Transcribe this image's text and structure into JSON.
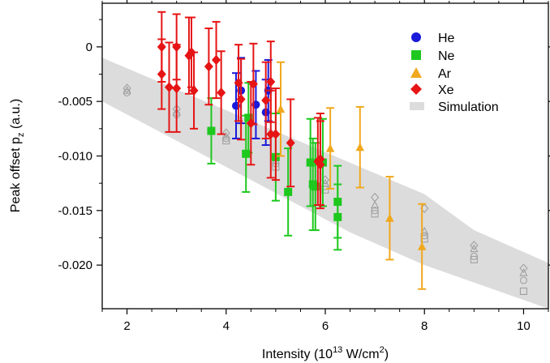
{
  "chart_data": {
    "type": "scatter",
    "xlabel": {
      "main": "Intensity (10",
      "sup": "13",
      "mid": " W/cm",
      "sup2": "2",
      "end": ")"
    },
    "ylabel": {
      "main": "Peak offset p",
      "sub": "z",
      "end": " (a.u.)"
    },
    "xlim": [
      1.5,
      10.5
    ],
    "ylim": [
      -0.024,
      0.004
    ],
    "x_ticks": [
      2,
      4,
      6,
      8,
      10
    ],
    "x_tick_labels": [
      "2",
      "4",
      "6",
      "8",
      "10"
    ],
    "y_ticks": [
      0,
      -0.005,
      -0.01,
      -0.015,
      -0.02
    ],
    "y_tick_labels": [
      "0",
      "-0.005",
      "-0.010",
      "-0.015",
      "-0.020"
    ],
    "legend_position": "top-right",
    "series": [
      {
        "name": "He",
        "marker": "circle",
        "color": "#1a1adb",
        "points": [
          {
            "x": 4.2,
            "y": -0.0054,
            "err": 0.003
          },
          {
            "x": 4.3,
            "y": -0.004,
            "err": 0.003
          },
          {
            "x": 4.6,
            "y": -0.0053,
            "err": 0.0031
          },
          {
            "x": 4.8,
            "y": -0.006,
            "err": 0.003
          },
          {
            "x": 4.85,
            "y": -0.004,
            "err": 0.0028
          }
        ]
      },
      {
        "name": "Ne",
        "marker": "square",
        "color": "#1ec81e",
        "points": [
          {
            "x": 3.7,
            "y": -0.0077,
            "err": 0.003
          },
          {
            "x": 4.4,
            "y": -0.0098,
            "err": 0.0035
          },
          {
            "x": 4.45,
            "y": -0.0065,
            "err": 0.0032
          },
          {
            "x": 5.0,
            "y": -0.0101,
            "err": 0.004
          },
          {
            "x": 5.25,
            "y": -0.0133,
            "err": 0.004
          },
          {
            "x": 5.7,
            "y": -0.0106,
            "err": 0.004
          },
          {
            "x": 5.75,
            "y": -0.0126,
            "err": 0.0042
          },
          {
            "x": 5.8,
            "y": -0.0128,
            "err": 0.004
          },
          {
            "x": 5.95,
            "y": -0.0106,
            "err": 0.004
          },
          {
            "x": 6.25,
            "y": -0.0142,
            "err": 0.0033
          },
          {
            "x": 6.25,
            "y": -0.0156,
            "err": 0.003
          }
        ]
      },
      {
        "name": "Ar",
        "marker": "triangle",
        "color": "#f0a81e",
        "points": [
          {
            "x": 5.1,
            "y": -0.0057,
            "err": 0.0043
          },
          {
            "x": 6.1,
            "y": -0.0093,
            "err": 0.0037
          },
          {
            "x": 6.7,
            "y": -0.0092,
            "err": 0.0037
          },
          {
            "x": 7.3,
            "y": -0.0157,
            "err": 0.0038
          },
          {
            "x": 7.95,
            "y": -0.0183,
            "err": 0.0039
          }
        ]
      },
      {
        "name": "Xe",
        "marker": "diamond",
        "color": "#e61414",
        "points": [
          {
            "x": 2.7,
            "y": 0.0,
            "err": 0.0032
          },
          {
            "x": 2.7,
            "y": -0.0025,
            "err": 0.0032
          },
          {
            "x": 2.85,
            "y": -0.0037,
            "err": 0.0041
          },
          {
            "x": 3.0,
            "y": 0.0,
            "err": 0.003
          },
          {
            "x": 3.0,
            "y": -0.0038,
            "err": 0.004
          },
          {
            "x": 3.25,
            "y": -0.0008,
            "err": 0.0035
          },
          {
            "x": 3.3,
            "y": -0.0005,
            "err": 0.0032
          },
          {
            "x": 3.35,
            "y": -0.004,
            "err": 0.0035
          },
          {
            "x": 3.65,
            "y": -0.0018,
            "err": 0.0035
          },
          {
            "x": 3.8,
            "y": -0.0012,
            "err": 0.0035
          },
          {
            "x": 3.9,
            "y": -0.0042,
            "err": 0.0038
          },
          {
            "x": 4.25,
            "y": -0.0033,
            "err": 0.0035
          },
          {
            "x": 4.3,
            "y": -0.0048,
            "err": 0.0037
          },
          {
            "x": 4.5,
            "y": -0.007,
            "err": 0.0038
          },
          {
            "x": 4.55,
            "y": -0.0034,
            "err": 0.0037
          },
          {
            "x": 4.8,
            "y": -0.0049,
            "err": 0.0035
          },
          {
            "x": 4.9,
            "y": -0.0032,
            "err": 0.0037
          },
          {
            "x": 4.9,
            "y": -0.008,
            "err": 0.004
          },
          {
            "x": 5.0,
            "y": -0.008,
            "err": 0.0042
          },
          {
            "x": 5.3,
            "y": -0.0088,
            "err": 0.004
          },
          {
            "x": 5.85,
            "y": -0.0105,
            "err": 0.004
          },
          {
            "x": 5.9,
            "y": -0.0103,
            "err": 0.0042
          },
          {
            "x": 5.9,
            "y": -0.0108,
            "err": 0.004
          }
        ]
      }
    ],
    "simulation": {
      "name": "Simulation",
      "color": "#dcdcdc",
      "band_upper": [
        [
          1.5,
          -0.001
        ],
        [
          8.0,
          -0.0135
        ],
        [
          9.0,
          -0.0168
        ],
        [
          10.5,
          -0.0198
        ]
      ],
      "band_lower": [
        [
          1.5,
          -0.005
        ],
        [
          6.5,
          -0.017
        ],
        [
          8.0,
          -0.02
        ],
        [
          10.5,
          -0.024
        ]
      ],
      "points_color": "#a0a0a0",
      "points": [
        {
          "x": 2.0,
          "y": -0.0038,
          "marker": "diamond"
        },
        {
          "x": 2.0,
          "y": -0.004,
          "marker": "triangle"
        },
        {
          "x": 2.0,
          "y": -0.0042,
          "marker": "circle"
        },
        {
          "x": 3.0,
          "y": -0.0057,
          "marker": "diamond"
        },
        {
          "x": 3.0,
          "y": -0.006,
          "marker": "triangle"
        },
        {
          "x": 3.0,
          "y": -0.0062,
          "marker": "circle"
        },
        {
          "x": 4.0,
          "y": -0.0079,
          "marker": "diamond"
        },
        {
          "x": 4.0,
          "y": -0.0082,
          "marker": "triangle"
        },
        {
          "x": 4.0,
          "y": -0.0084,
          "marker": "circle"
        },
        {
          "x": 4.0,
          "y": -0.0086,
          "marker": "square"
        },
        {
          "x": 5.0,
          "y": -0.0101,
          "marker": "diamond"
        },
        {
          "x": 5.0,
          "y": -0.0104,
          "marker": "triangle"
        },
        {
          "x": 5.0,
          "y": -0.0107,
          "marker": "circle"
        },
        {
          "x": 5.0,
          "y": -0.011,
          "marker": "square"
        },
        {
          "x": 6.0,
          "y": -0.0122,
          "marker": "diamond"
        },
        {
          "x": 6.0,
          "y": -0.0125,
          "marker": "triangle"
        },
        {
          "x": 6.0,
          "y": -0.0128,
          "marker": "circle"
        },
        {
          "x": 6.0,
          "y": -0.0131,
          "marker": "square"
        },
        {
          "x": 7.0,
          "y": -0.0138,
          "marker": "diamond"
        },
        {
          "x": 7.0,
          "y": -0.0145,
          "marker": "triangle"
        },
        {
          "x": 7.0,
          "y": -0.015,
          "marker": "circle"
        },
        {
          "x": 7.0,
          "y": -0.0153,
          "marker": "square"
        },
        {
          "x": 8.0,
          "y": -0.0148,
          "marker": "diamond"
        },
        {
          "x": 8.0,
          "y": -0.0169,
          "marker": "triangle"
        },
        {
          "x": 8.0,
          "y": -0.0173,
          "marker": "circle"
        },
        {
          "x": 8.0,
          "y": -0.0176,
          "marker": "square"
        },
        {
          "x": 9.0,
          "y": -0.0182,
          "marker": "diamond"
        },
        {
          "x": 9.0,
          "y": -0.0185,
          "marker": "triangle"
        },
        {
          "x": 9.0,
          "y": -0.0192,
          "marker": "circle"
        },
        {
          "x": 9.0,
          "y": -0.0195,
          "marker": "square"
        },
        {
          "x": 10.0,
          "y": -0.0203,
          "marker": "diamond"
        },
        {
          "x": 10.0,
          "y": -0.0207,
          "marker": "triangle"
        },
        {
          "x": 10.0,
          "y": -0.0214,
          "marker": "circle"
        },
        {
          "x": 10.0,
          "y": -0.0224,
          "marker": "square"
        }
      ]
    }
  }
}
